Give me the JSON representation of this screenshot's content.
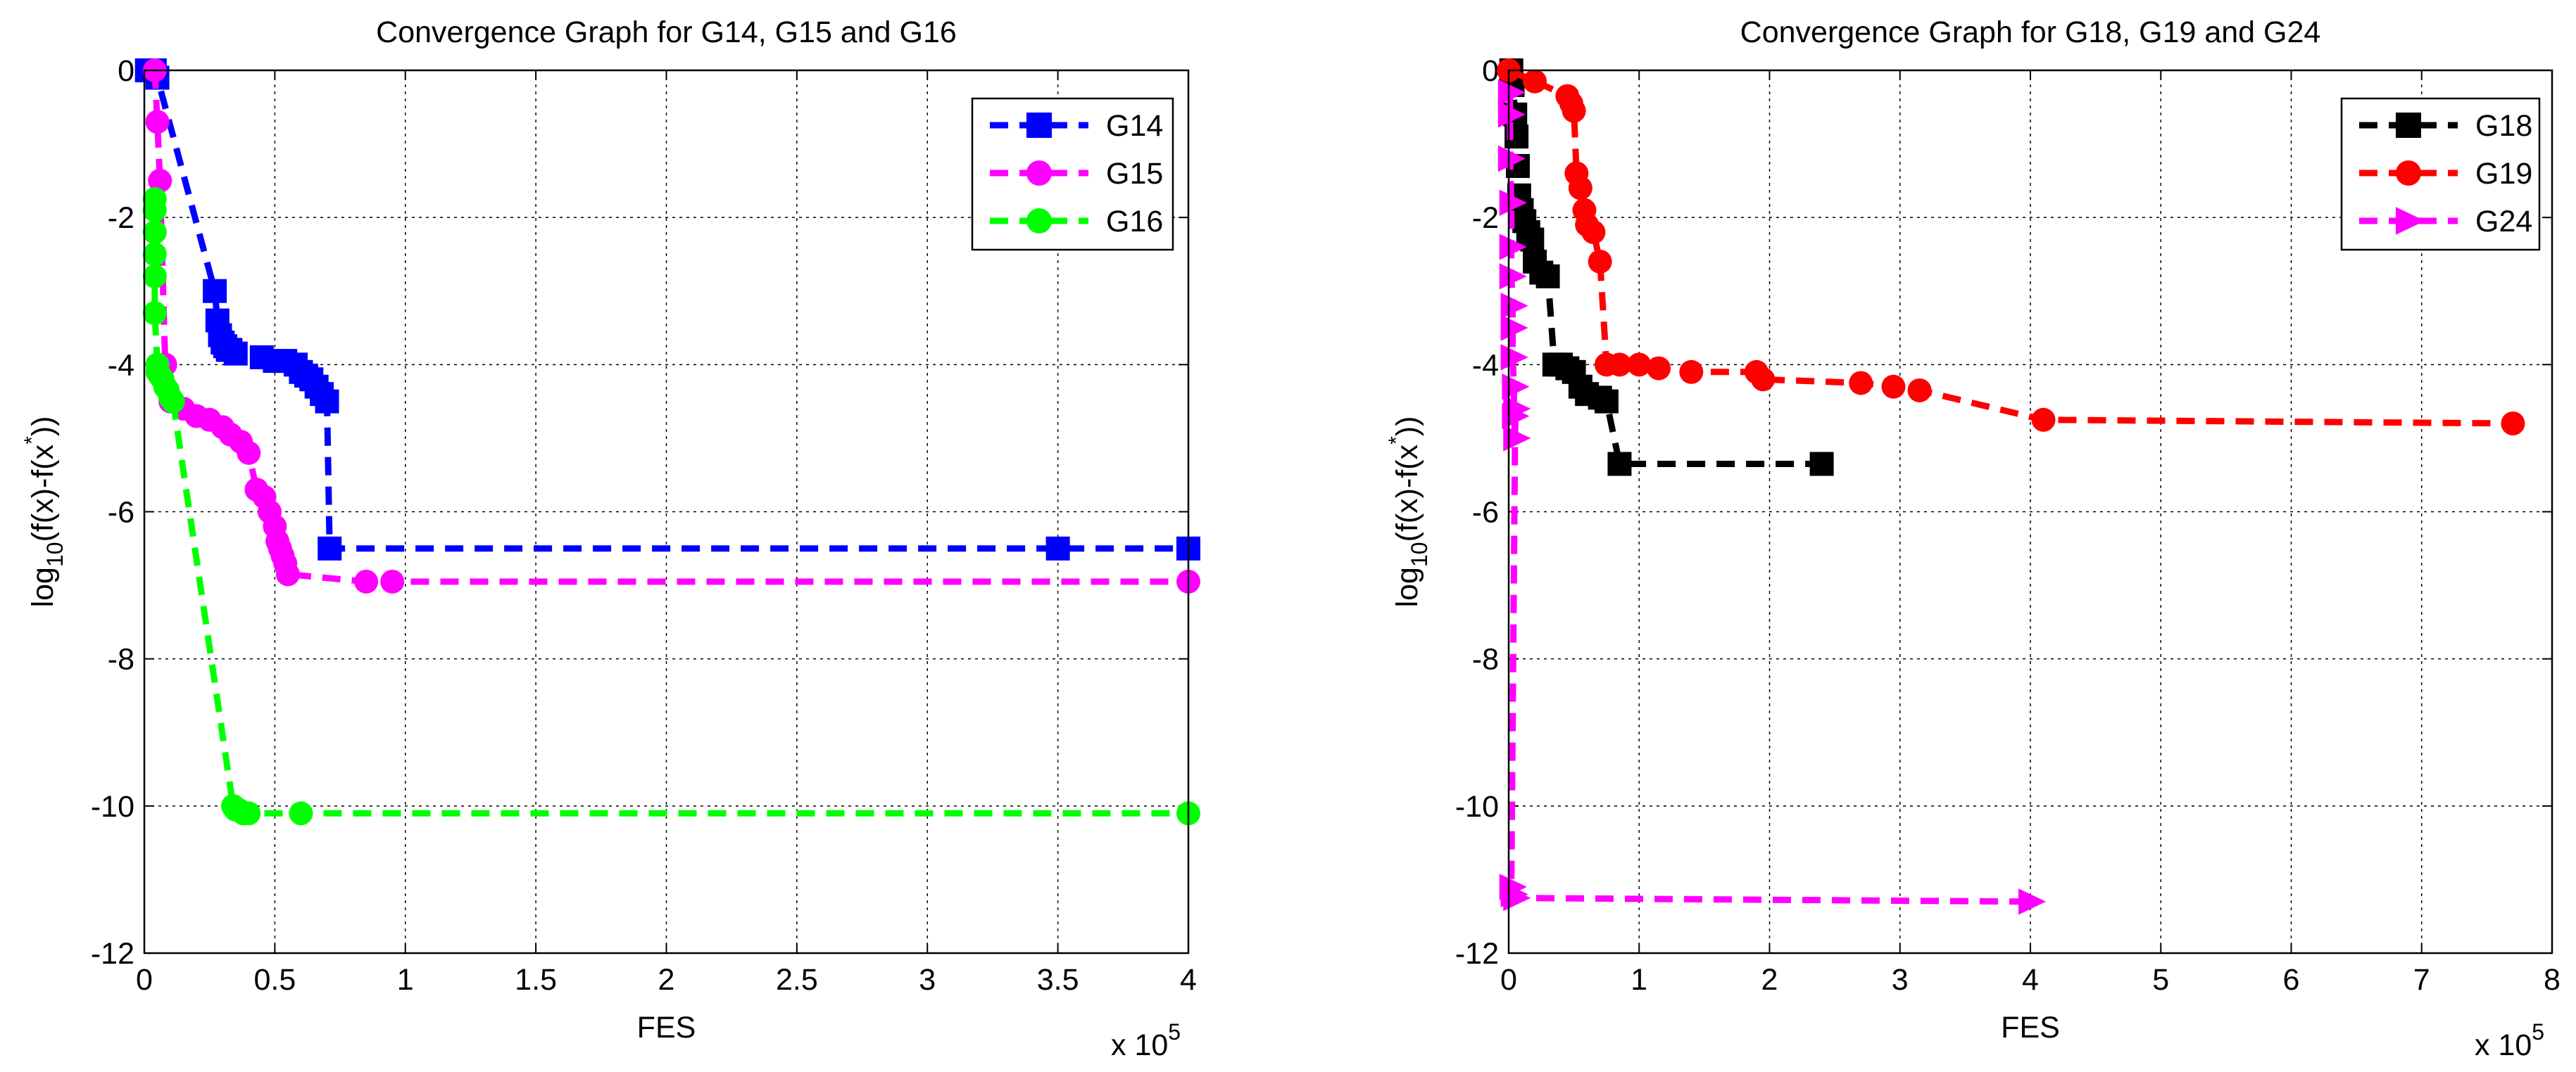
{
  "chart_data": [
    {
      "type": "line",
      "title": "Convergence Graph for G14, G15 and G16",
      "xlabel": "FES",
      "ylabel_parts": {
        "pre": "log",
        "sub": "10",
        "mid": "(f(x)-f(x",
        "sup": "*",
        "post": "))"
      },
      "x_multiplier": {
        "base": "x 10",
        "exp": "5"
      },
      "xlim": [
        0,
        4
      ],
      "ylim": [
        -12,
        0
      ],
      "xticks": [
        0,
        0.5,
        1,
        1.5,
        2,
        2.5,
        3,
        3.5,
        4
      ],
      "xtick_labels": [
        "0",
        "0.5",
        "1",
        "1.5",
        "2",
        "2.5",
        "3",
        "3.5",
        "4"
      ],
      "yticks": [
        0,
        -2,
        -4,
        -6,
        -8,
        -10,
        -12
      ],
      "ytick_labels": [
        "0",
        "-2",
        "-4",
        "-6",
        "-8",
        "-10",
        "-12"
      ],
      "grid": true,
      "legend_position": "top-right",
      "series": [
        {
          "name": "G14",
          "color": "#0000ff",
          "marker": "square",
          "x": [
            0.01,
            0.02,
            0.03,
            0.04,
            0.05,
            0.27,
            0.28,
            0.29,
            0.3,
            0.31,
            0.32,
            0.33,
            0.35,
            0.45,
            0.5,
            0.54,
            0.58,
            0.6,
            0.62,
            0.64,
            0.66,
            0.68,
            0.7,
            0.71,
            3.5,
            4.0
          ],
          "y": [
            0,
            0,
            0,
            0,
            -0.1,
            -3.0,
            -3.4,
            -3.6,
            -3.7,
            -3.75,
            -3.8,
            -3.8,
            -3.85,
            -3.9,
            -3.95,
            -3.95,
            -4.0,
            -4.1,
            -4.15,
            -4.2,
            -4.3,
            -4.4,
            -4.5,
            -6.5,
            -6.5,
            -6.5
          ]
        },
        {
          "name": "G15",
          "color": "#ff00ff",
          "marker": "circle",
          "x": [
            0.04,
            0.05,
            0.06,
            0.08,
            0.1,
            0.15,
            0.2,
            0.25,
            0.3,
            0.33,
            0.37,
            0.4,
            0.43,
            0.46,
            0.48,
            0.5,
            0.51,
            0.52,
            0.53,
            0.54,
            0.55,
            0.85,
            0.95,
            4.0
          ],
          "y": [
            0,
            -0.7,
            -1.5,
            -4.0,
            -4.5,
            -4.6,
            -4.7,
            -4.75,
            -4.85,
            -4.95,
            -5.05,
            -5.2,
            -5.7,
            -5.8,
            -6.0,
            -6.2,
            -6.4,
            -6.5,
            -6.6,
            -6.7,
            -6.85,
            -6.95,
            -6.95,
            -6.95
          ]
        },
        {
          "name": "G16",
          "color": "#00ff00",
          "marker": "circle",
          "x": [
            0.04,
            0.04,
            0.04,
            0.04,
            0.04,
            0.04,
            0.05,
            0.05,
            0.06,
            0.07,
            0.08,
            0.09,
            0.1,
            0.11,
            0.34,
            0.35,
            0.36,
            0.38,
            0.4,
            0.6,
            4.0
          ],
          "y": [
            -1.75,
            -1.9,
            -2.2,
            -2.5,
            -2.8,
            -3.3,
            -4.0,
            -4.1,
            -4.15,
            -4.2,
            -4.3,
            -4.35,
            -4.45,
            -4.5,
            -10.0,
            -10.05,
            -10.05,
            -10.1,
            -10.1,
            -10.1,
            -10.1
          ]
        }
      ]
    },
    {
      "type": "line",
      "title": "Convergence Graph for G18, G19 and G24",
      "xlabel": "FES",
      "ylabel_parts": {
        "pre": "log",
        "sub": "10",
        "mid": "(f(x)-f(x",
        "sup": "*",
        "post": "))"
      },
      "x_multiplier": {
        "base": "x 10",
        "exp": "5"
      },
      "xlim": [
        0,
        8
      ],
      "ylim": [
        -12,
        0
      ],
      "xticks": [
        0,
        1,
        2,
        3,
        4,
        5,
        6,
        7,
        8
      ],
      "xtick_labels": [
        "0",
        "1",
        "2",
        "3",
        "4",
        "5",
        "6",
        "7",
        "8"
      ],
      "yticks": [
        0,
        -2,
        -4,
        -6,
        -8,
        -10,
        -12
      ],
      "ytick_labels": [
        "0",
        "-2",
        "-4",
        "-6",
        "-8",
        "-10",
        "-12"
      ],
      "grid": true,
      "legend_position": "top-right",
      "series": [
        {
          "name": "G18",
          "color": "#000000",
          "marker": "square",
          "x": [
            0.02,
            0.03,
            0.05,
            0.06,
            0.07,
            0.08,
            0.1,
            0.12,
            0.15,
            0.18,
            0.2,
            0.25,
            0.3,
            0.35,
            0.4,
            0.45,
            0.5,
            0.55,
            0.6,
            0.7,
            0.75,
            0.85,
            2.4
          ],
          "y": [
            0,
            -0.2,
            -0.6,
            -0.9,
            -1.3,
            -1.7,
            -1.9,
            -2.05,
            -2.2,
            -2.3,
            -2.6,
            -2.75,
            -2.8,
            -4.0,
            -4.0,
            -4.05,
            -4.1,
            -4.3,
            -4.4,
            -4.45,
            -4.5,
            -5.35,
            -5.35
          ]
        },
        {
          "name": "G19",
          "color": "#ff0000",
          "marker": "circle",
          "x": [
            0.0,
            0.2,
            0.45,
            0.48,
            0.5,
            0.52,
            0.55,
            0.58,
            0.6,
            0.65,
            0.7,
            0.75,
            0.85,
            1.0,
            1.15,
            1.4,
            1.9,
            1.95,
            2.7,
            2.95,
            3.15,
            4.1,
            7.7
          ],
          "y": [
            0,
            -0.15,
            -0.35,
            -0.45,
            -0.55,
            -1.4,
            -1.6,
            -1.9,
            -2.1,
            -2.2,
            -2.6,
            -4.0,
            -4.0,
            -4.0,
            -4.05,
            -4.1,
            -4.1,
            -4.2,
            -4.25,
            -4.3,
            -4.35,
            -4.75,
            -4.8
          ]
        },
        {
          "name": "G24",
          "color": "#ff00ff",
          "marker": "triangle-right",
          "x": [
            0.01,
            0.01,
            0.01,
            0.02,
            0.02,
            0.02,
            0.03,
            0.03,
            0.03,
            0.04,
            0.04,
            0.05,
            0.05,
            0.02,
            0.03,
            0.05,
            4.0
          ],
          "y": [
            -0.3,
            -0.6,
            -1.2,
            -1.8,
            -2.4,
            -2.8,
            -3.2,
            -3.5,
            -3.9,
            -4.3,
            -4.7,
            -5.0,
            -4.6,
            -11.1,
            -11.2,
            -11.25,
            -11.3
          ]
        }
      ]
    }
  ]
}
